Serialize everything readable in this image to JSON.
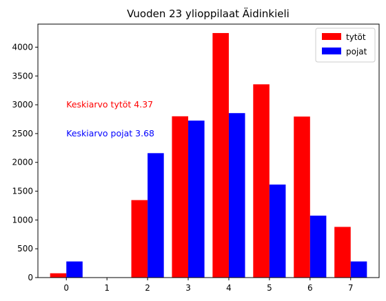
{
  "chart_data": {
    "type": "bar",
    "title": "Vuoden 23 ylioppilaat Äidinkieli",
    "xlabel": "",
    "ylabel": "",
    "categories": [
      "0",
      "1",
      "2",
      "3",
      "4",
      "5",
      "6",
      "7"
    ],
    "series": [
      {
        "name": "tytöt",
        "color": "#ff0000",
        "values": [
          75,
          0,
          1345,
          2800,
          4245,
          3355,
          2795,
          880
        ]
      },
      {
        "name": "pojat",
        "color": "#0000ff",
        "values": [
          280,
          0,
          2160,
          2725,
          2855,
          1615,
          1075,
          280
        ]
      }
    ],
    "ylim": [
      0,
      4400
    ],
    "yticks": [
      0,
      500,
      1000,
      1500,
      2000,
      2500,
      3000,
      3500,
      4000
    ],
    "grid": false,
    "legend_position": "top-right",
    "annotations": [
      {
        "text": "Keskiarvo tytöt 4.37",
        "x": 0,
        "y": 3000,
        "color": "#ff0000"
      },
      {
        "text": "Keskiarvo pojat 3.68",
        "x": 0,
        "y": 2500,
        "color": "#0000ff"
      }
    ]
  }
}
